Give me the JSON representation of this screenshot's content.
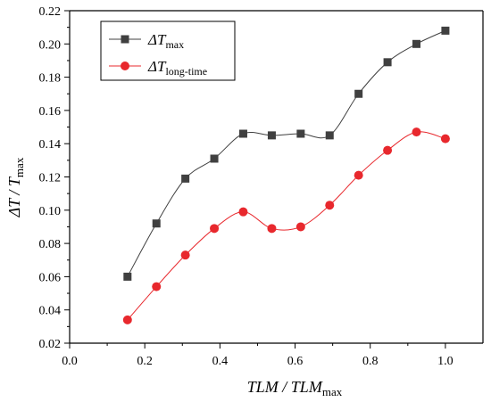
{
  "chart_data": {
    "type": "line",
    "xlabel": {
      "main": "TLM / TLM",
      "sub": "max"
    },
    "ylabel": {
      "main": "ΔT / T",
      "sub": "max"
    },
    "xlim": [
      0.0,
      1.1
    ],
    "ylim": [
      0.02,
      0.22
    ],
    "xticks": [
      "0.0",
      "0.2",
      "0.4",
      "0.6",
      "0.8",
      "1.0"
    ],
    "xtick_values": [
      0.0,
      0.2,
      0.4,
      0.6,
      0.8,
      1.0
    ],
    "yticks": [
      "0.02",
      "0.04",
      "0.06",
      "0.08",
      "0.10",
      "0.12",
      "0.14",
      "0.16",
      "0.18",
      "0.20",
      "0.22"
    ],
    "ytick_values": [
      0.02,
      0.04,
      0.06,
      0.08,
      0.1,
      0.12,
      0.14,
      0.16,
      0.18,
      0.2,
      0.22
    ],
    "grid": false,
    "legend_position": "top-left",
    "x": [
      0.154,
      0.231,
      0.308,
      0.385,
      0.462,
      0.538,
      0.615,
      0.692,
      0.769,
      0.846,
      0.923,
      1.0
    ],
    "series": [
      {
        "name_main": "ΔT",
        "name_sub": "max",
        "marker": "square",
        "color": "#404040",
        "values": [
          0.06,
          0.092,
          0.119,
          0.131,
          0.146,
          0.145,
          0.146,
          0.145,
          0.17,
          0.189,
          0.2,
          0.208
        ]
      },
      {
        "name_main": "ΔT",
        "name_sub": "long-time",
        "marker": "circle",
        "color": "#e8282d",
        "values": [
          0.034,
          0.054,
          0.073,
          0.089,
          0.099,
          0.089,
          0.09,
          0.103,
          0.121,
          0.136,
          0.147,
          0.143
        ]
      }
    ]
  }
}
